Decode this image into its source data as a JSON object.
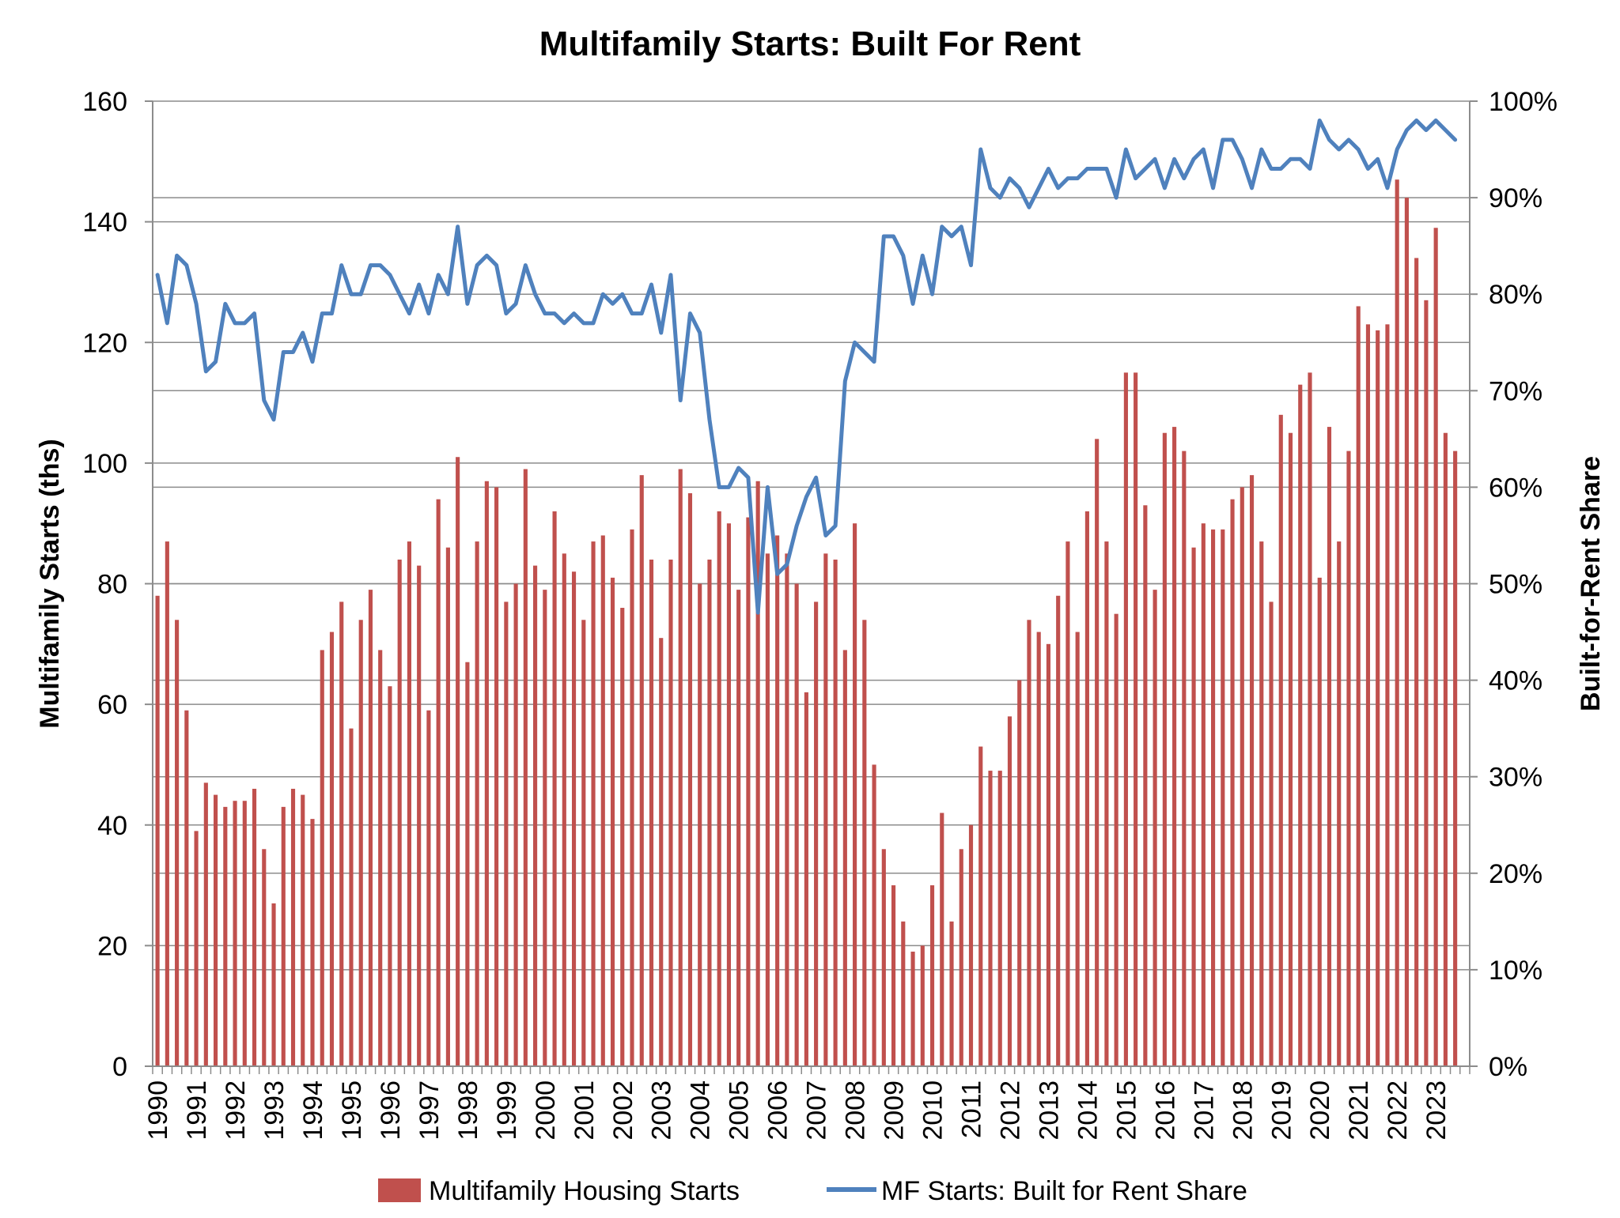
{
  "chart_data": {
    "type": "bar+line",
    "title": "Multifamily Starts: Built For Rent",
    "y_left": {
      "label": "Multifamily Starts (ths)",
      "range": [
        0,
        160
      ],
      "ticks": [
        "0",
        "20",
        "40",
        "60",
        "80",
        "100",
        "120",
        "140",
        "160"
      ]
    },
    "y_right": {
      "label": "Built-for-Rent Share",
      "range": [
        0,
        100
      ],
      "ticks": [
        "0%",
        "10%",
        "20%",
        "30%",
        "40%",
        "50%",
        "60%",
        "70%",
        "80%",
        "90%",
        "100%"
      ]
    },
    "x": {
      "frequency": "quarterly",
      "start": "1990Q1",
      "end": "2023Q4",
      "tick_labels": [
        "1990",
        "1991",
        "1992",
        "1993",
        "1994",
        "1995",
        "1996",
        "1997",
        "1998",
        "1999",
        "2000",
        "2001",
        "2002",
        "2003",
        "2004",
        "2005",
        "2006",
        "2007",
        "2008",
        "2009",
        "2010",
        "2011",
        "2012",
        "2013",
        "2014",
        "2015",
        "2016",
        "2017",
        "2018",
        "2019",
        "2020",
        "2021",
        "2022",
        "2023"
      ]
    },
    "grid": "horizontal",
    "legend_position": "bottom",
    "series": [
      {
        "name": "Multifamily Housing Starts",
        "kind": "bar",
        "axis": "left",
        "color": "#c0504d",
        "values": [
          78,
          87,
          74,
          59,
          39,
          47,
          45,
          43,
          44,
          44,
          46,
          36,
          27,
          43,
          46,
          45,
          41,
          69,
          72,
          77,
          56,
          74,
          79,
          69,
          63,
          84,
          87,
          83,
          59,
          94,
          86,
          101,
          67,
          87,
          97,
          96,
          77,
          80,
          99,
          83,
          79,
          92,
          85,
          82,
          74,
          87,
          88,
          81,
          76,
          89,
          98,
          84,
          71,
          84,
          99,
          95,
          80,
          84,
          92,
          90,
          79,
          91,
          97,
          85,
          88,
          85,
          80,
          62,
          77,
          85,
          84,
          69,
          90,
          74,
          50,
          36,
          30,
          24,
          19,
          20,
          30,
          42,
          24,
          36,
          40,
          53,
          49,
          49,
          58,
          64,
          74,
          72,
          70,
          78,
          87,
          72,
          92,
          104,
          87,
          75,
          115,
          115,
          93,
          79,
          105,
          106,
          102,
          86,
          90,
          89,
          89,
          94,
          96,
          98,
          87,
          77,
          108,
          105,
          113,
          115,
          81,
          106,
          87,
          102,
          126,
          123,
          122,
          123,
          147,
          144,
          134,
          127,
          139,
          105,
          102
        ]
      },
      {
        "name": "MF Starts: Built for Rent Share",
        "kind": "line",
        "axis": "right",
        "color": "#4f81bd",
        "values": [
          82,
          77,
          84,
          83,
          79,
          72,
          73,
          79,
          77,
          77,
          78,
          69,
          67,
          74,
          74,
          76,
          73,
          78,
          78,
          83,
          80,
          80,
          83,
          83,
          82,
          80,
          78,
          81,
          78,
          82,
          80,
          87,
          79,
          83,
          84,
          83,
          78,
          79,
          83,
          80,
          78,
          78,
          77,
          78,
          77,
          77,
          80,
          79,
          80,
          78,
          78,
          81,
          76,
          82,
          69,
          78,
          76,
          67,
          60,
          60,
          62,
          61,
          47,
          60,
          51,
          52,
          56,
          59,
          61,
          55,
          56,
          71,
          75,
          74,
          73,
          86,
          86,
          84,
          79,
          84,
          80,
          87,
          86,
          87,
          83,
          95,
          91,
          90,
          92,
          91,
          89,
          91,
          93,
          91,
          92,
          92,
          93,
          93,
          93,
          90,
          95,
          92,
          93,
          94,
          91,
          94,
          92,
          94,
          95,
          91,
          96,
          96,
          94,
          91,
          95,
          93,
          93,
          94,
          94,
          93,
          98,
          96,
          95,
          96,
          95,
          93,
          94,
          91,
          95,
          97,
          98,
          97,
          98,
          97,
          96
        ]
      }
    ]
  }
}
